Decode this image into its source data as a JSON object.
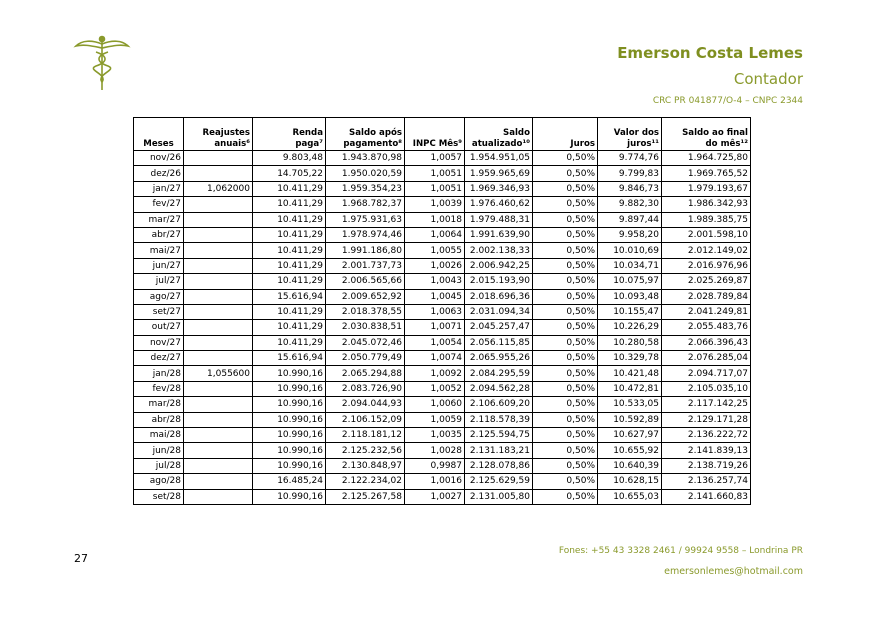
{
  "header": {
    "name": "Emerson Costa Lemes",
    "role": "Contador",
    "registration": "CRC PR 041877/O-4 – CNPC 2344"
  },
  "table": {
    "columns": [
      "Meses",
      "Reajustes\nanuais⁶",
      "Renda\npaga⁷",
      "Saldo após\npagamento⁸",
      "INPC Mês⁹",
      "Saldo\natualizado¹⁰",
      "Juros",
      "Valor dos\njuros¹¹",
      "Saldo ao final\ndo mês¹²"
    ],
    "rows": [
      [
        "nov/26",
        null,
        "9.803,48",
        "1.943.870,98",
        "1,0057",
        "1.954.951,05",
        "0,50%",
        "9.774,76",
        "1.964.725,80"
      ],
      [
        "dez/26",
        null,
        "14.705,22",
        "1.950.020,59",
        "1,0051",
        "1.959.965,69",
        "0,50%",
        "9.799,83",
        "1.969.765,52"
      ],
      [
        "jan/27",
        "1,062000",
        "10.411,29",
        "1.959.354,23",
        "1,0051",
        "1.969.346,93",
        "0,50%",
        "9.846,73",
        "1.979.193,67"
      ],
      [
        "fev/27",
        null,
        "10.411,29",
        "1.968.782,37",
        "1,0039",
        "1.976.460,62",
        "0,50%",
        "9.882,30",
        "1.986.342,93"
      ],
      [
        "mar/27",
        null,
        "10.411,29",
        "1.975.931,63",
        "1,0018",
        "1.979.488,31",
        "0,50%",
        "9.897,44",
        "1.989.385,75"
      ],
      [
        "abr/27",
        null,
        "10.411,29",
        "1.978.974,46",
        "1,0064",
        "1.991.639,90",
        "0,50%",
        "9.958,20",
        "2.001.598,10"
      ],
      [
        "mai/27",
        null,
        "10.411,29",
        "1.991.186,80",
        "1,0055",
        "2.002.138,33",
        "0,50%",
        "10.010,69",
        "2.012.149,02"
      ],
      [
        "jun/27",
        null,
        "10.411,29",
        "2.001.737,73",
        "1,0026",
        "2.006.942,25",
        "0,50%",
        "10.034,71",
        "2.016.976,96"
      ],
      [
        "jul/27",
        null,
        "10.411,29",
        "2.006.565,66",
        "1,0043",
        "2.015.193,90",
        "0,50%",
        "10.075,97",
        "2.025.269,87"
      ],
      [
        "ago/27",
        null,
        "15.616,94",
        "2.009.652,92",
        "1,0045",
        "2.018.696,36",
        "0,50%",
        "10.093,48",
        "2.028.789,84"
      ],
      [
        "set/27",
        null,
        "10.411,29",
        "2.018.378,55",
        "1,0063",
        "2.031.094,34",
        "0,50%",
        "10.155,47",
        "2.041.249,81"
      ],
      [
        "out/27",
        null,
        "10.411,29",
        "2.030.838,51",
        "1,0071",
        "2.045.257,47",
        "0,50%",
        "10.226,29",
        "2.055.483,76"
      ],
      [
        "nov/27",
        null,
        "10.411,29",
        "2.045.072,46",
        "1,0054",
        "2.056.115,85",
        "0,50%",
        "10.280,58",
        "2.066.396,43"
      ],
      [
        "dez/27",
        null,
        "15.616,94",
        "2.050.779,49",
        "1,0074",
        "2.065.955,26",
        "0,50%",
        "10.329,78",
        "2.076.285,04"
      ],
      [
        "jan/28",
        "1,055600",
        "10.990,16",
        "2.065.294,88",
        "1,0092",
        "2.084.295,59",
        "0,50%",
        "10.421,48",
        "2.094.717,07"
      ],
      [
        "fev/28",
        null,
        "10.990,16",
        "2.083.726,90",
        "1,0052",
        "2.094.562,28",
        "0,50%",
        "10.472,81",
        "2.105.035,10"
      ],
      [
        "mar/28",
        null,
        "10.990,16",
        "2.094.044,93",
        "1,0060",
        "2.106.609,20",
        "0,50%",
        "10.533,05",
        "2.117.142,25"
      ],
      [
        "abr/28",
        null,
        "10.990,16",
        "2.106.152,09",
        "1,0059",
        "2.118.578,39",
        "0,50%",
        "10.592,89",
        "2.129.171,28"
      ],
      [
        "mai/28",
        null,
        "10.990,16",
        "2.118.181,12",
        "1,0035",
        "2.125.594,75",
        "0,50%",
        "10.627,97",
        "2.136.222,72"
      ],
      [
        "jun/28",
        null,
        "10.990,16",
        "2.125.232,56",
        "1,0028",
        "2.131.183,21",
        "0,50%",
        "10.655,92",
        "2.141.839,13"
      ],
      [
        "jul/28",
        null,
        "10.990,16",
        "2.130.848,97",
        "0,9987",
        "2.128.078,86",
        "0,50%",
        "10.640,39",
        "2.138.719,26"
      ],
      [
        "ago/28",
        null,
        "16.485,24",
        "2.122.234,02",
        "1,0016",
        "2.125.629,59",
        "0,50%",
        "10.628,15",
        "2.136.257,74"
      ],
      [
        "set/28",
        null,
        "10.990,16",
        "2.125.267,58",
        "1,0027",
        "2.131.005,80",
        "0,50%",
        "10.655,03",
        "2.141.660,83"
      ]
    ]
  },
  "footer": {
    "page": "27",
    "phone": "Fones: +55 43 3328 2461 / 99924 9558 – Londrina PR",
    "email": "emersonlemes@hotmail.com"
  }
}
